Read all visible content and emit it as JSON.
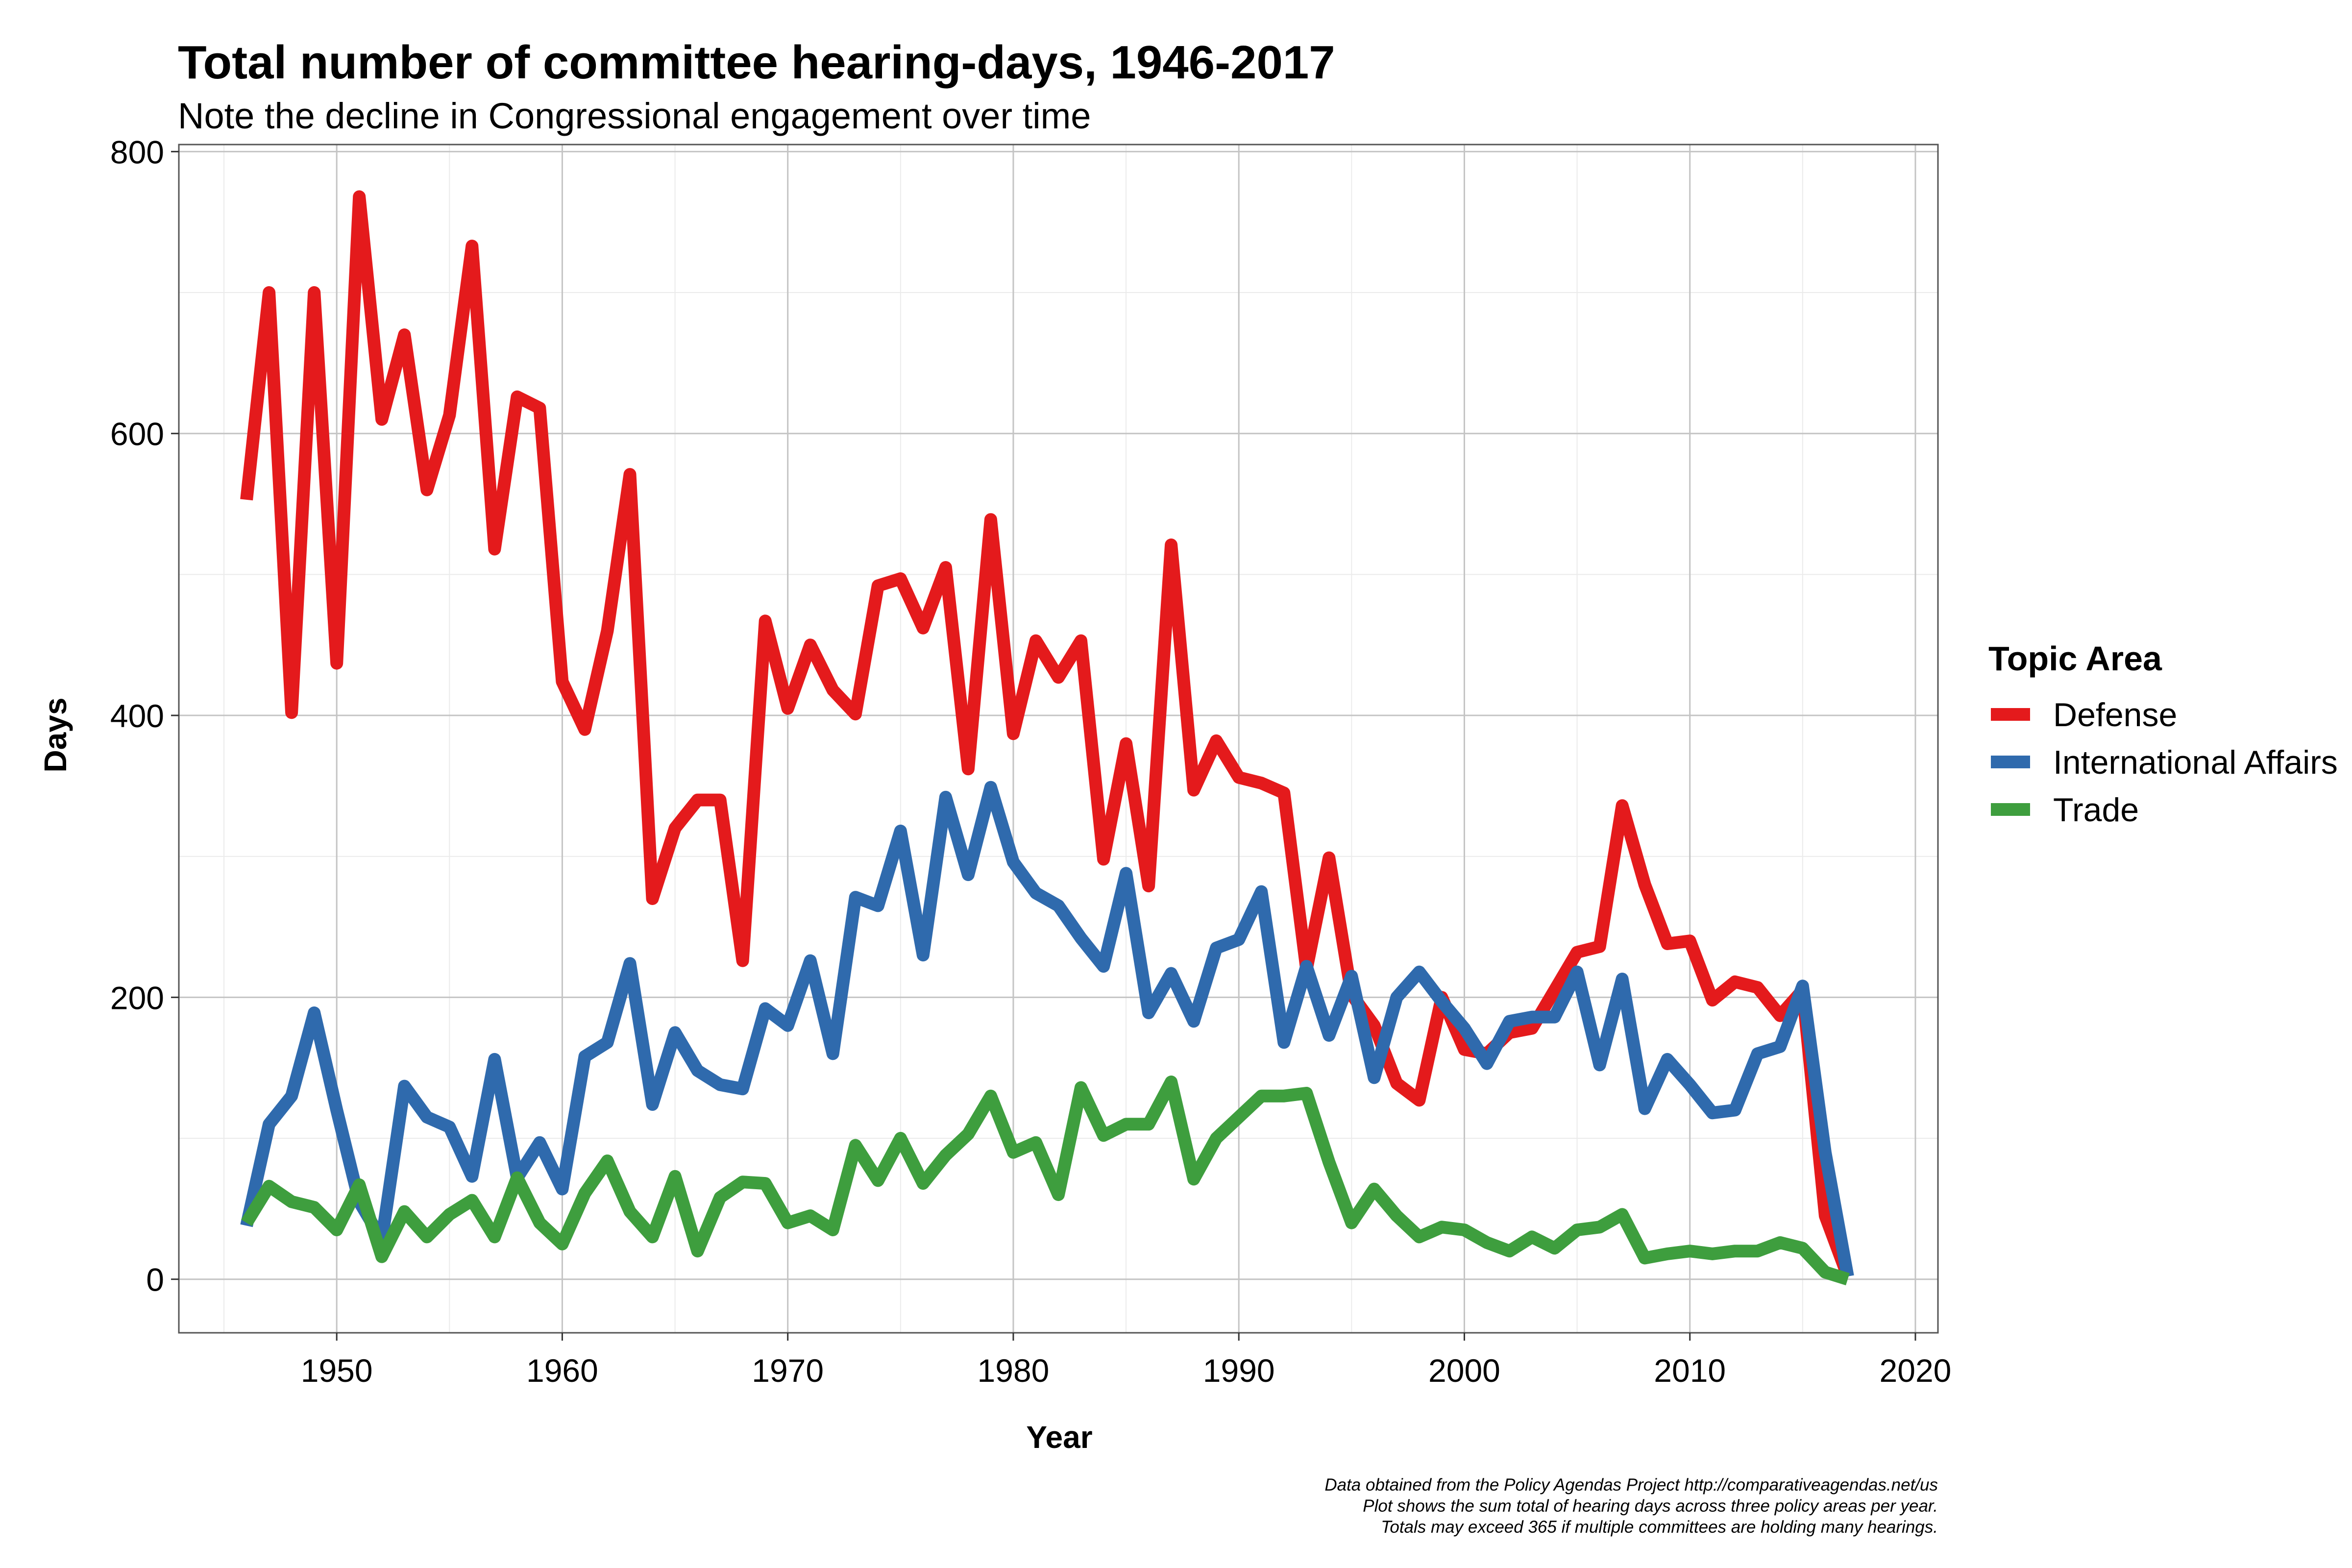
{
  "chart_data": {
    "type": "line",
    "title": "Total number of committee hearing-days, 1946-2017",
    "subtitle": "Note the decline in Congressional engagement over time",
    "xlabel": "Year",
    "ylabel": "Days",
    "xlim": [
      1943,
      2021
    ],
    "ylim": [
      -38,
      805
    ],
    "x_ticks": [
      "1950",
      "1960",
      "1970",
      "1980",
      "1990",
      "2000",
      "2010",
      "2020"
    ],
    "y_ticks": [
      "0",
      "200",
      "400",
      "600",
      "800"
    ],
    "grid": true,
    "legend": {
      "title": "Topic Area",
      "position": "right"
    },
    "caption": [
      "Data obtained from the Policy Agendas Project http://comparativeagendas.net/us",
      "Plot shows the sum total of hearing days across three policy areas per year.",
      "Totals may exceed 365 if multiple committees are holding many hearings."
    ],
    "x": [
      1946,
      1947,
      1948,
      1949,
      1950,
      1951,
      1952,
      1953,
      1954,
      1955,
      1956,
      1957,
      1958,
      1959,
      1960,
      1961,
      1962,
      1963,
      1964,
      1965,
      1966,
      1967,
      1968,
      1969,
      1970,
      1971,
      1972,
      1973,
      1974,
      1975,
      1976,
      1977,
      1978,
      1979,
      1980,
      1981,
      1982,
      1983,
      1984,
      1985,
      1986,
      1987,
      1988,
      1989,
      1990,
      1991,
      1992,
      1993,
      1994,
      1995,
      1996,
      1997,
      1998,
      1999,
      2000,
      2001,
      2002,
      2003,
      2004,
      2005,
      2006,
      2007,
      2008,
      2009,
      2010,
      2011,
      2012,
      2013,
      2014,
      2015,
      2016,
      2017
    ],
    "series": [
      {
        "name": "Defense",
        "color": "#e41a1c",
        "values": [
          553,
          700,
          402,
          700,
          437,
          768,
          610,
          670,
          560,
          613,
          733,
          518,
          626,
          618,
          424,
          390,
          460,
          571,
          270,
          320,
          340,
          340,
          226,
          467,
          405,
          450,
          418,
          401,
          492,
          497,
          462,
          505,
          362,
          539,
          387,
          453,
          427,
          453,
          298,
          380,
          279,
          521,
          347,
          382,
          356,
          352,
          345,
          220,
          299,
          202,
          180,
          139,
          127,
          200,
          163,
          160,
          175,
          178,
          205,
          232,
          236,
          336,
          280,
          238,
          240,
          198,
          211,
          207,
          187,
          205,
          45,
          2
        ]
      },
      {
        "name": "International Affairs",
        "color": "#2f6aad",
        "values": [
          38,
          110,
          130,
          189,
          120,
          55,
          28,
          137,
          115,
          108,
          73,
          156,
          72,
          97,
          64,
          158,
          168,
          224,
          124,
          175,
          148,
          138,
          135,
          192,
          180,
          226,
          160,
          271,
          265,
          318,
          230,
          342,
          287,
          349,
          296,
          274,
          265,
          242,
          222,
          288,
          189,
          217,
          183,
          235,
          241,
          275,
          168,
          222,
          173,
          215,
          143,
          200,
          218,
          197,
          178,
          153,
          183,
          186,
          186,
          218,
          152,
          213,
          121,
          156,
          138,
          118,
          120,
          160,
          165,
          208,
          90,
          2
        ]
      },
      {
        "name": "Trade",
        "color": "#3e9e3e",
        "values": [
          40,
          66,
          55,
          51,
          35,
          67,
          16,
          48,
          30,
          46,
          56,
          30,
          72,
          40,
          25,
          61,
          84,
          48,
          30,
          73,
          20,
          58,
          69,
          68,
          40,
          45,
          35,
          95,
          70,
          100,
          68,
          88,
          103,
          130,
          90,
          97,
          60,
          136,
          102,
          110,
          110,
          140,
          71,
          100,
          115,
          130,
          130,
          132,
          83,
          40,
          64,
          45,
          30,
          37,
          35,
          26,
          20,
          30,
          22,
          35,
          37,
          46,
          15,
          18,
          20,
          18,
          20,
          20,
          26,
          22,
          5,
          0
        ]
      }
    ]
  }
}
